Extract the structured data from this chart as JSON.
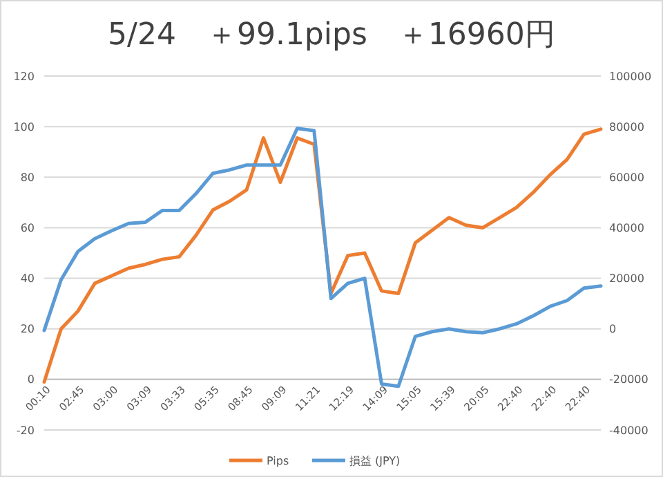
{
  "chart_data": {
    "type": "line",
    "title": "5/24　＋99.1pips　＋16960円",
    "categories": [
      "00:10",
      null,
      "02:45",
      null,
      "03:00",
      null,
      "03:09",
      null,
      "03:33",
      null,
      "05:35",
      null,
      "08:45",
      null,
      "09:09",
      null,
      "11:21",
      null,
      "12:19",
      null,
      "14:09",
      null,
      "15:05",
      null,
      "15:39",
      null,
      "20:05",
      null,
      "22:40",
      null,
      "22:40",
      null,
      "22:40",
      null
    ],
    "series": [
      {
        "name": "Pips",
        "color": "#ed7d31",
        "values": [
          -1,
          20,
          27,
          38,
          41,
          44,
          45.5,
          47.5,
          48.5,
          57,
          67,
          70.5,
          75,
          95.5,
          78,
          95.5,
          93,
          34,
          49,
          50,
          35,
          34,
          54,
          59,
          64,
          61,
          60,
          64,
          68,
          74,
          81,
          87,
          97,
          99
        ]
      },
      {
        "name": "損益 (JPY)",
        "color": "#5b9bd5",
        "axis": "y2",
        "values": [
          -600,
          19400,
          30600,
          35700,
          38800,
          41700,
          42200,
          46800,
          46800,
          53500,
          61500,
          62900,
          64800,
          64800,
          64800,
          79300,
          78400,
          12000,
          18000,
          20000,
          -21800,
          -22700,
          -3000,
          -1100,
          0,
          -1100,
          -1500,
          0,
          2000,
          5200,
          8900,
          11200,
          16100,
          16960
        ]
      }
    ],
    "ylim": [
      -20,
      120
    ],
    "yticks": [
      -20,
      0,
      20,
      40,
      60,
      80,
      100,
      120
    ],
    "y2lim": [
      -40000,
      100000
    ],
    "y2ticks": [
      -40000,
      -20000,
      0,
      20000,
      40000,
      60000,
      80000,
      100000
    ],
    "grid": "y",
    "legend": "bottom",
    "marker": "none",
    "line_style": "solid"
  }
}
